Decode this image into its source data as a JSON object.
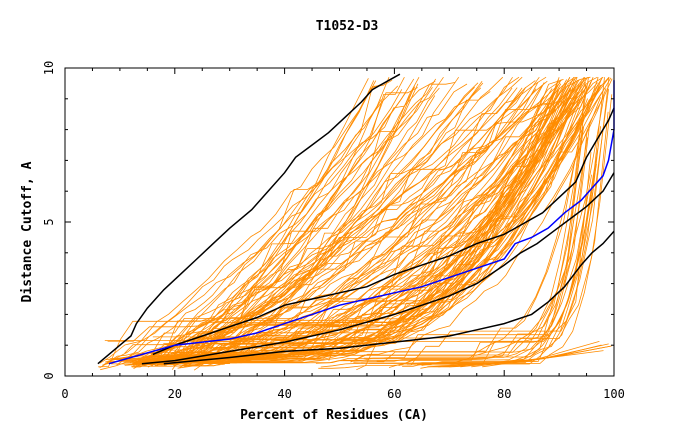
{
  "chart_data": {
    "type": "line",
    "title": "T1052-D3",
    "xlabel": "Percent of Residues (CA)",
    "ylabel": "Distance Cutoff, A",
    "xlim": [
      0,
      100
    ],
    "ylim": [
      0,
      10
    ],
    "x_ticks": [
      "0",
      "20",
      "40",
      "60",
      "80",
      "100"
    ],
    "y_ticks": [
      "0",
      "5",
      "10"
    ],
    "grid": false,
    "legend": "none",
    "colors": {
      "background_models": "#ff8c00",
      "highlighted_models": "#000000",
      "target_model": "#0000ff"
    },
    "series": [
      {
        "role": "highlighted",
        "x": [
          6,
          8,
          10,
          12,
          13,
          15,
          18,
          21,
          24,
          27,
          30,
          34,
          37,
          40,
          42,
          45,
          48,
          51,
          54,
          56,
          59,
          61
        ],
        "y": [
          0.4,
          0.7,
          1.0,
          1.3,
          1.7,
          2.2,
          2.8,
          3.3,
          3.8,
          4.3,
          4.8,
          5.4,
          6.0,
          6.6,
          7.1,
          7.5,
          7.9,
          8.4,
          8.9,
          9.3,
          9.6,
          9.8
        ]
      },
      {
        "role": "highlighted",
        "x": [
          16,
          20,
          25,
          30,
          35,
          40,
          45,
          50,
          55,
          60,
          65,
          70,
          75,
          80,
          83,
          87,
          90,
          93,
          95,
          97,
          99,
          100
        ],
        "y": [
          0.7,
          1.0,
          1.3,
          1.6,
          1.9,
          2.3,
          2.5,
          2.7,
          2.9,
          3.3,
          3.6,
          3.9,
          4.3,
          4.6,
          4.9,
          5.3,
          5.8,
          6.3,
          7.1,
          7.7,
          8.3,
          8.7
        ]
      },
      {
        "role": "highlighted",
        "x": [
          14,
          20,
          30,
          40,
          50,
          60,
          65,
          70,
          75,
          80,
          83,
          86,
          89,
          92,
          95,
          98,
          100
        ],
        "y": [
          0.4,
          0.5,
          0.8,
          1.1,
          1.5,
          2.0,
          2.3,
          2.6,
          3.0,
          3.6,
          4.0,
          4.3,
          4.7,
          5.1,
          5.5,
          6.0,
          6.6
        ]
      },
      {
        "role": "highlighted",
        "x": [
          18,
          30,
          40,
          50,
          60,
          70,
          75,
          80,
          85,
          88,
          91,
          94,
          96,
          98,
          100
        ],
        "y": [
          0.4,
          0.6,
          0.8,
          0.9,
          1.1,
          1.3,
          1.5,
          1.7,
          2.0,
          2.4,
          2.9,
          3.6,
          4.0,
          4.3,
          4.7
        ]
      },
      {
        "role": "target",
        "x": [
          8,
          12,
          16,
          20,
          25,
          30,
          35,
          40,
          45,
          50,
          55,
          60,
          65,
          70,
          75,
          80,
          82,
          85,
          88,
          91,
          94,
          96,
          98,
          99,
          100,
          100
        ],
        "y": [
          0.4,
          0.6,
          0.8,
          1.0,
          1.1,
          1.2,
          1.4,
          1.7,
          2.0,
          2.3,
          2.5,
          2.7,
          2.9,
          3.2,
          3.5,
          3.8,
          4.3,
          4.5,
          4.8,
          5.3,
          5.7,
          6.1,
          6.5,
          7.0,
          8.0,
          9.6
        ]
      }
    ]
  }
}
